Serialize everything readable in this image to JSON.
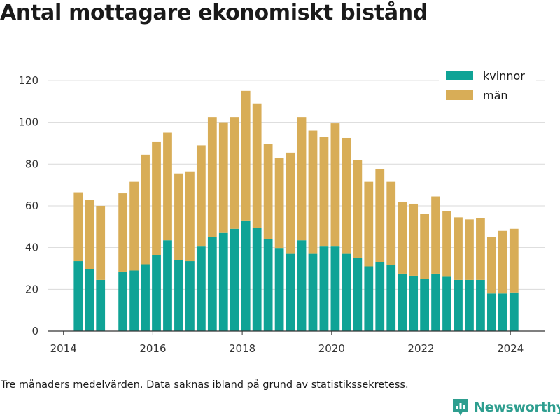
{
  "title": "Antal mottagare ekonomiskt bistånd",
  "footnote": "Tre månaders medelvärden. Data saknas ibland på grund av statistikssekretess.",
  "brand": {
    "name": "Newsworthy",
    "icon": "newsworthy-logo-icon",
    "color": "#2e9e8f"
  },
  "colors": {
    "kvinnor": "#0fa396",
    "man": "#d8ad57",
    "grid": "#d9d9d9",
    "axis": "#333333"
  },
  "chart_data": {
    "type": "bar",
    "stacked": true,
    "title": "Antal mottagare ekonomiskt bistånd",
    "xlabel": "",
    "ylabel": "",
    "ylim": [
      0,
      125
    ],
    "xlim": [
      2013.66,
      2024.78
    ],
    "yticks": [
      0,
      20,
      40,
      60,
      80,
      100,
      120
    ],
    "xticks": [
      2014,
      2016,
      2018,
      2020,
      2022,
      2024
    ],
    "bar_width_years": 0.2,
    "legend_position": "top-right",
    "grid": true,
    "x": [
      2014.33,
      2014.58,
      2014.83,
      2015.33,
      2015.58,
      2015.83,
      2016.08,
      2016.33,
      2016.58,
      2016.83,
      2017.08,
      2017.33,
      2017.58,
      2017.83,
      2018.08,
      2018.33,
      2018.58,
      2018.83,
      2019.08,
      2019.33,
      2019.58,
      2019.83,
      2020.08,
      2020.33,
      2020.58,
      2020.83,
      2021.08,
      2021.33,
      2021.58,
      2021.83,
      2022.08,
      2022.33,
      2022.58,
      2022.83,
      2023.08,
      2023.33,
      2023.58,
      2023.83,
      2024.08
    ],
    "series": [
      {
        "name": "kvinnor",
        "color": "#0fa396",
        "values": [
          33.5,
          29.5,
          24.5,
          28.5,
          29,
          32,
          36.5,
          43.5,
          34,
          33.5,
          40.5,
          45,
          47,
          49,
          53,
          49.5,
          44,
          39.5,
          37,
          43.5,
          37,
          40.5,
          40.5,
          37,
          35,
          31,
          33,
          31.5,
          27.5,
          26.5,
          25,
          27.5,
          26,
          24.5,
          24.5,
          24.5,
          18,
          18,
          18.5
        ]
      },
      {
        "name": "män",
        "color": "#d8ad57",
        "values": [
          33,
          33.5,
          35.5,
          37.5,
          42.5,
          52.5,
          54,
          51.5,
          41.5,
          43,
          48.5,
          57.5,
          53,
          53.5,
          62,
          59.5,
          45.5,
          43.5,
          48.5,
          59,
          59,
          52.5,
          59,
          55.5,
          47,
          40.5,
          44.5,
          40,
          34.5,
          34.5,
          31,
          37,
          31.5,
          30,
          29,
          29.5,
          27,
          30,
          30.5
        ]
      }
    ]
  }
}
